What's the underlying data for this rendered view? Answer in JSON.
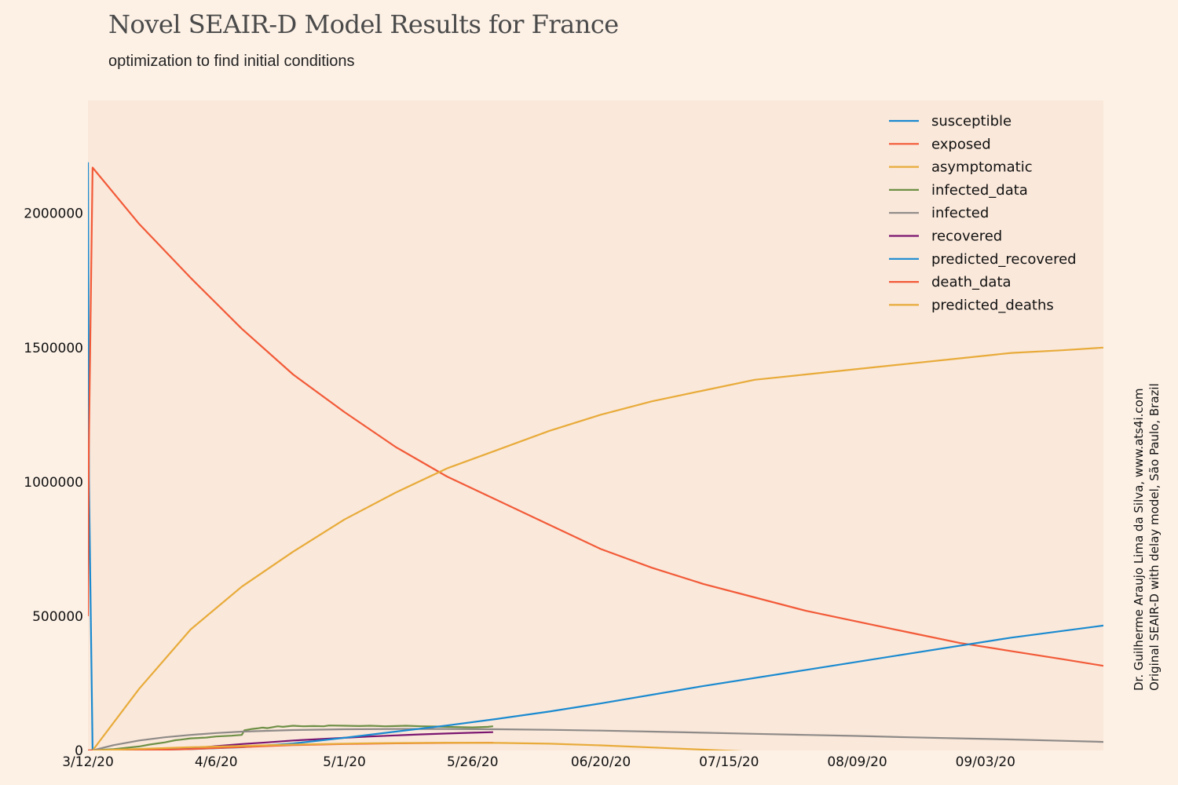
{
  "chart_data": {
    "type": "line",
    "title": "Novel SEAIR-D Model Results for France",
    "subtitle": "optimization to find initial conditions",
    "credit": [
      "Dr. Guilherme Araujo Lima da Silva, www.ats4i.com",
      "Original SEAIR-D with delay model, São Paulo, Brazil"
    ],
    "x_tick_labels": [
      "3/12/20",
      "4/6/20",
      "5/1/20",
      "5/26/20",
      "06/20/20",
      "07/15/20",
      "08/09/20",
      "09/03/20"
    ],
    "x_ticks_day": [
      0,
      25,
      50,
      75,
      100,
      125,
      150,
      175
    ],
    "xlim_day": [
      0,
      198
    ],
    "ylim": [
      0,
      2420000
    ],
    "y_ticks": [
      0,
      500000,
      1000000,
      1500000,
      2000000
    ],
    "y_tick_labels": [
      "0",
      "500000",
      "1000000",
      "1500000",
      "2000000"
    ],
    "background": "#fdf1e6",
    "plot_background": "#fae8da",
    "grid": false,
    "legend_position": "top-right",
    "series": [
      {
        "name": "susceptible",
        "color": "#1a8ad0",
        "x": [
          0,
          0.2,
          0.9
        ],
        "y": [
          2190000,
          1000000,
          0
        ]
      },
      {
        "name": "exposed",
        "color": "#f25a38",
        "x": [
          0,
          0.15,
          0.9,
          10,
          20,
          30,
          40,
          50,
          60,
          70,
          80,
          90,
          100,
          110,
          120,
          130,
          140,
          150,
          160,
          170,
          180,
          190,
          198
        ],
        "y": [
          500000,
          1100000,
          2170000,
          1960000,
          1760000,
          1570000,
          1400000,
          1260000,
          1130000,
          1020000,
          930000,
          840000,
          750000,
          680000,
          620000,
          570000,
          520000,
          480000,
          440000,
          400000,
          370000,
          340000,
          315000
        ]
      },
      {
        "name": "asymptomatic",
        "color": "#e8ab3a",
        "x": [
          0.9,
          10,
          20,
          30,
          40,
          50,
          60,
          70,
          80,
          90,
          100,
          110,
          120,
          130,
          140,
          150,
          160,
          170,
          180,
          190,
          198
        ],
        "y": [
          0,
          230000,
          450000,
          610000,
          740000,
          860000,
          960000,
          1050000,
          1120000,
          1190000,
          1250000,
          1300000,
          1340000,
          1380000,
          1400000,
          1420000,
          1440000,
          1460000,
          1480000,
          1490000,
          1500000
        ]
      },
      {
        "name": "infected_data",
        "color": "#6e9046",
        "x": [
          0,
          5,
          10,
          12,
          15,
          17,
          18,
          20,
          23,
          25,
          28,
          30,
          30.5,
          32,
          33,
          34,
          35,
          37,
          38,
          40,
          42,
          44,
          46,
          47,
          50,
          53,
          55,
          58,
          60,
          62,
          65,
          68,
          70,
          72,
          75,
          78,
          79
        ],
        "y": [
          0,
          5000,
          15000,
          22000,
          30000,
          38000,
          40000,
          45000,
          48000,
          52000,
          55000,
          58000,
          75000,
          80000,
          82000,
          85000,
          83000,
          90000,
          88000,
          92000,
          90000,
          91000,
          90000,
          93000,
          92000,
          91000,
          92000,
          90000,
          91000,
          92000,
          90000,
          89000,
          88000,
          87000,
          86000,
          88000,
          90000
        ]
      },
      {
        "name": "infected",
        "color": "#8e8a88",
        "x": [
          0.9,
          5,
          10,
          15,
          20,
          25,
          30,
          40,
          50,
          60,
          70,
          80,
          90,
          100,
          110,
          120,
          130,
          140,
          150,
          160,
          170,
          180,
          190,
          198
        ],
        "y": [
          0,
          20000,
          37000,
          49000,
          58000,
          65000,
          70000,
          76000,
          79000,
          80000,
          80000,
          79000,
          77000,
          74000,
          70000,
          66000,
          62000,
          58000,
          54000,
          49000,
          45000,
          41000,
          36000,
          32000
        ]
      },
      {
        "name": "recovered",
        "color": "#7a1570",
        "x": [
          15,
          20,
          25,
          30,
          35,
          40,
          45,
          50,
          55,
          60,
          65,
          70,
          75,
          79
        ],
        "y": [
          3000,
          8000,
          16000,
          24000,
          30000,
          37000,
          42000,
          47000,
          52000,
          56000,
          60000,
          63000,
          66000,
          68000
        ]
      },
      {
        "name": "predicted_recovered",
        "color": "#1a8ad0",
        "x": [
          0.9,
          10,
          20,
          30,
          40,
          50,
          60,
          70,
          80,
          90,
          100,
          120,
          140,
          160,
          180,
          198
        ],
        "y": [
          0,
          2000,
          5000,
          12000,
          26000,
          47000,
          70000,
          93000,
          118000,
          145000,
          175000,
          240000,
          300000,
          360000,
          420000,
          465000
        ]
      },
      {
        "name": "death_data",
        "color": "#f25a38",
        "x": [
          0,
          10,
          20,
          30,
          40,
          50,
          60,
          70,
          79
        ],
        "y": [
          0,
          800,
          5000,
          13000,
          20000,
          24000,
          26500,
          28000,
          29000
        ]
      },
      {
        "name": "predicted_deaths",
        "color": "#e8ab3a",
        "x": [
          0.9,
          20,
          40,
          55,
          70,
          80,
          90,
          100,
          110,
          120,
          130,
          140,
          150,
          160,
          170,
          180,
          190,
          198
        ],
        "y": [
          0,
          12000,
          22000,
          27000,
          29000,
          28000,
          25000,
          19000,
          11000,
          3000,
          -5000,
          -13000,
          -22000,
          -30000,
          -38000,
          -45000,
          -52000,
          -58000
        ]
      }
    ]
  }
}
